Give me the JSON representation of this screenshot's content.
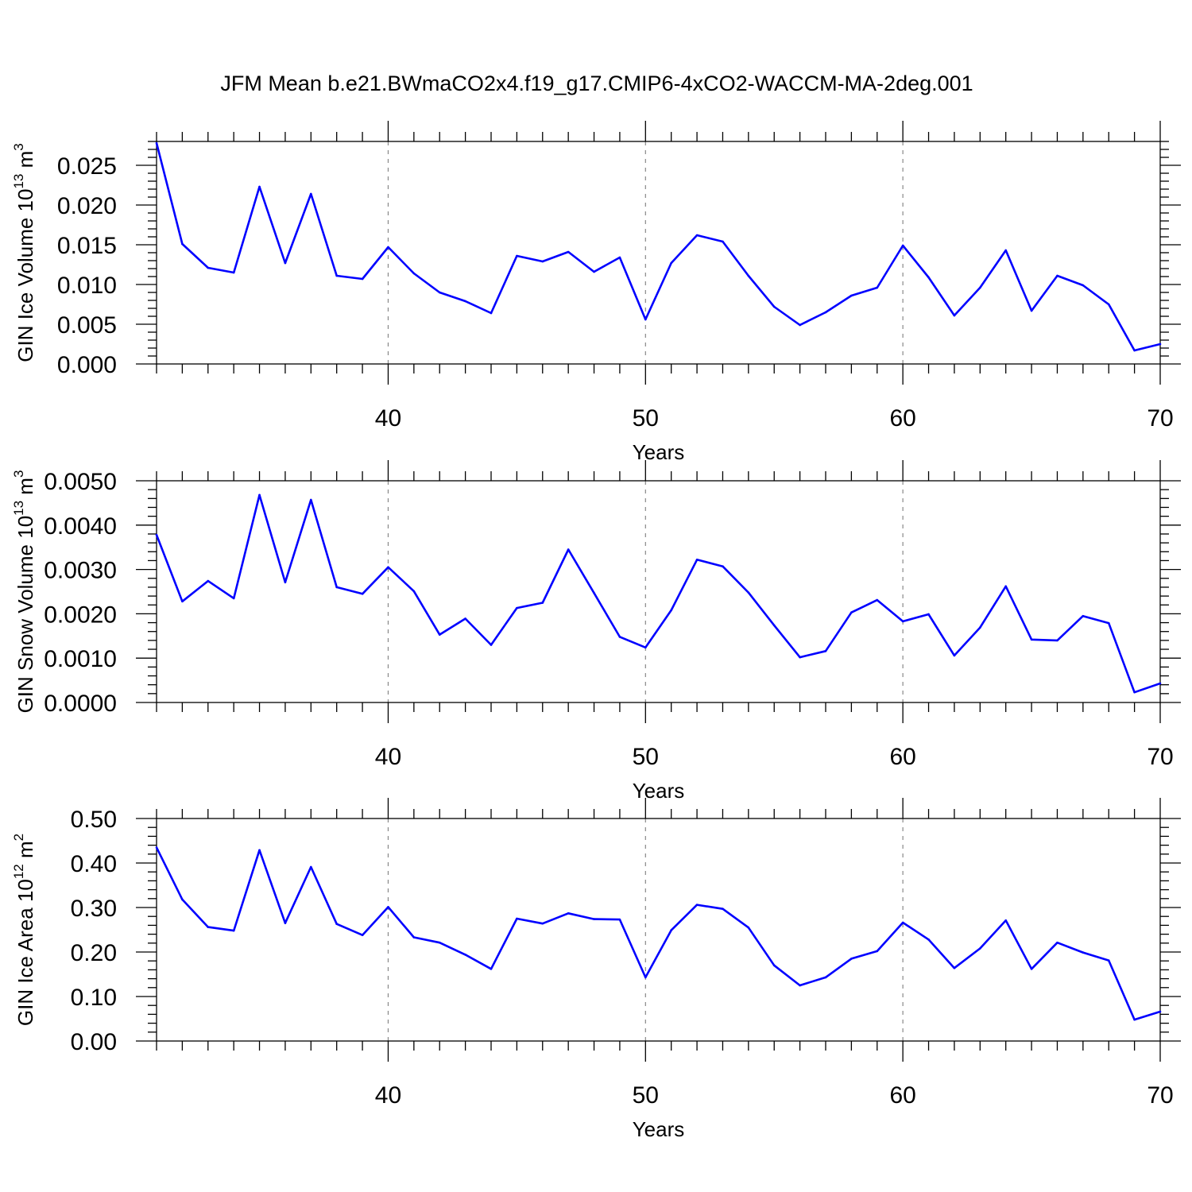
{
  "title": "JFM Mean b.e21.BWmaCO2x4.f19_g17.CMIP6-4xCO2-WACCM-MA-2deg.001",
  "colors": {
    "line": "#0000ff",
    "frame": "#000000",
    "grid": "#888888"
  },
  "chart_data": [
    {
      "type": "line",
      "ylabel": "GIN Ice Volume 10",
      "ylabel_exp": "13",
      "ylabel_unit": " m",
      "ylabel_unit_exp": "3",
      "xlabel": "Years",
      "xlim": [
        31,
        70
      ],
      "ylim": [
        0,
        0.028
      ],
      "xticks": [
        40,
        50,
        60,
        70
      ],
      "yticks": [
        0,
        0.005,
        0.01,
        0.015,
        0.02,
        0.025
      ],
      "ytick_labels": [
        "0.000",
        "0.005",
        "0.010",
        "0.015",
        "0.020",
        "0.025"
      ],
      "grid_x": [
        40,
        50,
        60
      ],
      "x": [
        31,
        32,
        33,
        34,
        35,
        36,
        37,
        38,
        39,
        40,
        41,
        42,
        43,
        44,
        45,
        46,
        47,
        48,
        49,
        50,
        51,
        52,
        53,
        54,
        55,
        56,
        57,
        58,
        59,
        60,
        61,
        62,
        63,
        64,
        65,
        66,
        67,
        68,
        69,
        70
      ],
      "values": [
        0.0278,
        0.0151,
        0.0121,
        0.0115,
        0.0223,
        0.0127,
        0.0214,
        0.0111,
        0.0107,
        0.0147,
        0.0114,
        0.009,
        0.0079,
        0.0064,
        0.0136,
        0.0129,
        0.0141,
        0.0116,
        0.0134,
        0.0056,
        0.0127,
        0.0162,
        0.0154,
        0.0111,
        0.0072,
        0.0049,
        0.0065,
        0.0086,
        0.0096,
        0.0149,
        0.0109,
        0.0061,
        0.0096,
        0.0143,
        0.0067,
        0.0111,
        0.0099,
        0.0075,
        0.0017,
        0.0025
      ]
    },
    {
      "type": "line",
      "ylabel": "GIN Snow Volume 10",
      "ylabel_exp": "13",
      "ylabel_unit": " m",
      "ylabel_unit_exp": "3",
      "xlabel": "Years",
      "xlim": [
        31,
        70
      ],
      "ylim": [
        0,
        0.005
      ],
      "xticks": [
        40,
        50,
        60,
        70
      ],
      "yticks": [
        0,
        0.001,
        0.002,
        0.003,
        0.004,
        0.005
      ],
      "ytick_labels": [
        "0.0000",
        "0.0010",
        "0.0020",
        "0.0030",
        "0.0040",
        "0.0050"
      ],
      "grid_x": [
        40,
        50,
        60
      ],
      "x": [
        31,
        32,
        33,
        34,
        35,
        36,
        37,
        38,
        39,
        40,
        41,
        42,
        43,
        44,
        45,
        46,
        47,
        48,
        49,
        50,
        51,
        52,
        53,
        54,
        55,
        56,
        57,
        58,
        59,
        60,
        61,
        62,
        63,
        64,
        65,
        66,
        67,
        68,
        69,
        70
      ],
      "values": [
        0.00378,
        0.00228,
        0.00274,
        0.00235,
        0.00468,
        0.00271,
        0.00457,
        0.0026,
        0.00245,
        0.00305,
        0.00251,
        0.00153,
        0.00189,
        0.0013,
        0.00213,
        0.00225,
        0.00345,
        0.00247,
        0.00148,
        0.00124,
        0.00208,
        0.00322,
        0.00307,
        0.00248,
        0.00174,
        0.00102,
        0.00116,
        0.00203,
        0.00231,
        0.00183,
        0.00199,
        0.00106,
        0.00169,
        0.00262,
        0.00142,
        0.0014,
        0.00195,
        0.00179,
        0.00023,
        0.00043
      ]
    },
    {
      "type": "line",
      "ylabel": "GIN Ice Area 10",
      "ylabel_exp": "12",
      "ylabel_unit": " m",
      "ylabel_unit_exp": "2",
      "xlabel": "Years",
      "xlim": [
        31,
        70
      ],
      "ylim": [
        0,
        0.5
      ],
      "xticks": [
        40,
        50,
        60,
        70
      ],
      "yticks": [
        0,
        0.1,
        0.2,
        0.3,
        0.4,
        0.5
      ],
      "ytick_labels": [
        "0.00",
        "0.10",
        "0.20",
        "0.30",
        "0.40",
        "0.50"
      ],
      "grid_x": [
        40,
        50,
        60
      ],
      "x": [
        31,
        32,
        33,
        34,
        35,
        36,
        37,
        38,
        39,
        40,
        41,
        42,
        43,
        44,
        45,
        46,
        47,
        48,
        49,
        50,
        51,
        52,
        53,
        54,
        55,
        56,
        57,
        58,
        59,
        60,
        61,
        62,
        63,
        64,
        65,
        66,
        67,
        68,
        69,
        70
      ],
      "values": [
        0.435,
        0.318,
        0.256,
        0.248,
        0.429,
        0.265,
        0.391,
        0.263,
        0.238,
        0.301,
        0.233,
        0.221,
        0.194,
        0.162,
        0.275,
        0.264,
        0.287,
        0.274,
        0.273,
        0.143,
        0.249,
        0.306,
        0.297,
        0.255,
        0.17,
        0.125,
        0.143,
        0.185,
        0.202,
        0.266,
        0.228,
        0.164,
        0.208,
        0.271,
        0.162,
        0.221,
        0.199,
        0.181,
        0.048,
        0.066
      ]
    }
  ]
}
